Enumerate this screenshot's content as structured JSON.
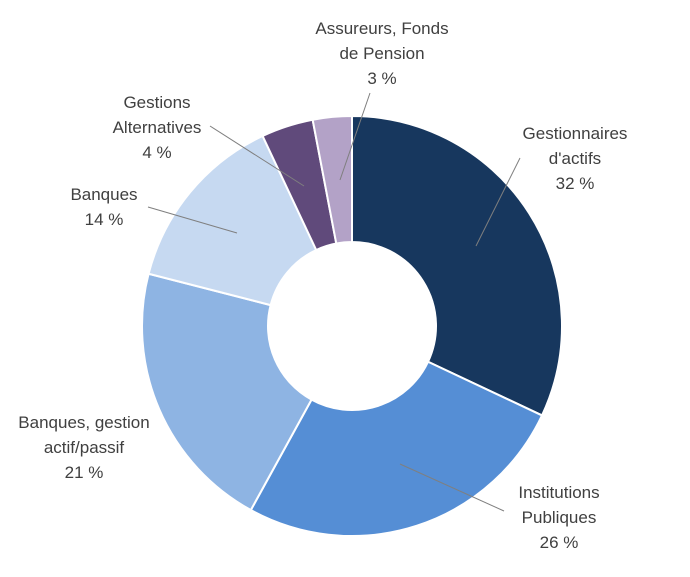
{
  "chart_data": {
    "type": "pie",
    "donut": true,
    "title": "",
    "slices": [
      {
        "label_lines": [
          "Gestionnaires",
          "d'actifs"
        ],
        "value": 32,
        "value_label": "32 %",
        "color": "#17375e"
      },
      {
        "label_lines": [
          "Institutions",
          "Publiques"
        ],
        "value": 26,
        "value_label": "26 %",
        "color": "#558ed5"
      },
      {
        "label_lines": [
          "Banques, gestion",
          "actif/passif"
        ],
        "value": 21,
        "value_label": "21 %",
        "color": "#8eb4e3"
      },
      {
        "label_lines": [
          "Banques"
        ],
        "value": 14,
        "value_label": "14 %",
        "color": "#c6d9f1"
      },
      {
        "label_lines": [
          "Gestions",
          "Alternatives"
        ],
        "value": 4,
        "value_label": "4 %",
        "color": "#604a7b"
      },
      {
        "label_lines": [
          "Assureurs, Fonds",
          "de Pension"
        ],
        "value": 3,
        "value_label": "3 %",
        "color": "#b3a2c7"
      }
    ],
    "legend": "none"
  }
}
